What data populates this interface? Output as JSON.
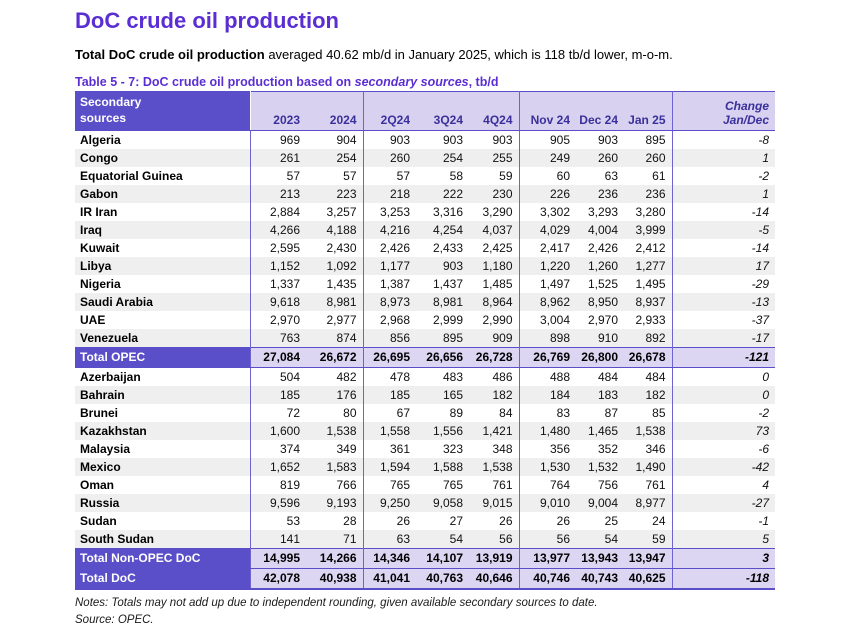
{
  "page": {
    "title": "DoC crude oil production",
    "subtitle_bold": "Total DoC crude oil production",
    "subtitle_rest": " averaged 40.62 mb/d in January 2025, which is 118 tb/d lower, m-o-m.",
    "caption_prefix": "Table 5 - 7: DoC crude oil production based on ",
    "caption_italic": "secondary sources",
    "caption_suffix": ", tb/d",
    "notes": "Notes: Totals may not add up due to independent rounding, given available secondary sources to date.",
    "source": "Source: OPEC."
  },
  "colors": {
    "accent_purple": "#5b2ed3",
    "header_dark_purple": "#5a4fc9",
    "header_light_lavender": "#d8d2f0",
    "header_text_purple": "#3a309b",
    "total_value_bg": "#dcd6f2",
    "alt_row_gray": "#efefef"
  },
  "table": {
    "header": {
      "col0_line1": "Secondary",
      "col0_line2": "sources",
      "columns": [
        "2023",
        "2024",
        "2Q24",
        "3Q24",
        "4Q24",
        "Nov 24",
        "Dec 24",
        "Jan 25"
      ],
      "change_line1": "Change",
      "change_line2": "Jan/Dec"
    },
    "rows": [
      {
        "type": "data",
        "label": "Algeria",
        "values": [
          "969",
          "904",
          "903",
          "903",
          "903",
          "905",
          "903",
          "895"
        ],
        "change": "-8"
      },
      {
        "type": "data",
        "label": "Congo",
        "values": [
          "261",
          "254",
          "260",
          "254",
          "255",
          "249",
          "260",
          "260"
        ],
        "change": "1"
      },
      {
        "type": "data",
        "label": "Equatorial Guinea",
        "values": [
          "57",
          "57",
          "57",
          "58",
          "59",
          "60",
          "63",
          "61"
        ],
        "change": "-2"
      },
      {
        "type": "data",
        "label": "Gabon",
        "values": [
          "213",
          "223",
          "218",
          "222",
          "230",
          "226",
          "236",
          "236"
        ],
        "change": "1"
      },
      {
        "type": "data",
        "label": "IR Iran",
        "values": [
          "2,884",
          "3,257",
          "3,253",
          "3,316",
          "3,290",
          "3,302",
          "3,293",
          "3,280"
        ],
        "change": "-14"
      },
      {
        "type": "data",
        "label": "Iraq",
        "values": [
          "4,266",
          "4,188",
          "4,216",
          "4,254",
          "4,037",
          "4,029",
          "4,004",
          "3,999"
        ],
        "change": "-5"
      },
      {
        "type": "data",
        "label": "Kuwait",
        "values": [
          "2,595",
          "2,430",
          "2,426",
          "2,433",
          "2,425",
          "2,417",
          "2,426",
          "2,412"
        ],
        "change": "-14"
      },
      {
        "type": "data",
        "label": "Libya",
        "values": [
          "1,152",
          "1,092",
          "1,177",
          "903",
          "1,180",
          "1,220",
          "1,260",
          "1,277"
        ],
        "change": "17"
      },
      {
        "type": "data",
        "label": "Nigeria",
        "values": [
          "1,337",
          "1,435",
          "1,387",
          "1,437",
          "1,485",
          "1,497",
          "1,525",
          "1,495"
        ],
        "change": "-29"
      },
      {
        "type": "data",
        "label": "Saudi Arabia",
        "values": [
          "9,618",
          "8,981",
          "8,973",
          "8,981",
          "8,964",
          "8,962",
          "8,950",
          "8,937"
        ],
        "change": "-13"
      },
      {
        "type": "data",
        "label": "UAE",
        "values": [
          "2,970",
          "2,977",
          "2,968",
          "2,999",
          "2,990",
          "3,004",
          "2,970",
          "2,933"
        ],
        "change": "-37"
      },
      {
        "type": "data",
        "label": "Venezuela",
        "values": [
          "763",
          "874",
          "856",
          "895",
          "909",
          "898",
          "910",
          "892"
        ],
        "change": "-17"
      },
      {
        "type": "total",
        "label": "Total  OPEC",
        "values": [
          "27,084",
          "26,672",
          "26,695",
          "26,656",
          "26,728",
          "26,769",
          "26,800",
          "26,678"
        ],
        "change": "-121"
      },
      {
        "type": "data",
        "label": "Azerbaijan",
        "values": [
          "504",
          "482",
          "478",
          "483",
          "486",
          "488",
          "484",
          "484"
        ],
        "change": "0"
      },
      {
        "type": "data",
        "label": "Bahrain",
        "values": [
          "185",
          "176",
          "185",
          "165",
          "182",
          "184",
          "183",
          "182"
        ],
        "change": "0"
      },
      {
        "type": "data",
        "label": "Brunei",
        "values": [
          "72",
          "80",
          "67",
          "89",
          "84",
          "83",
          "87",
          "85"
        ],
        "change": "-2"
      },
      {
        "type": "data",
        "label": "Kazakhstan",
        "values": [
          "1,600",
          "1,538",
          "1,558",
          "1,556",
          "1,421",
          "1,480",
          "1,465",
          "1,538"
        ],
        "change": "73"
      },
      {
        "type": "data",
        "label": "Malaysia",
        "values": [
          "374",
          "349",
          "361",
          "323",
          "348",
          "356",
          "352",
          "346"
        ],
        "change": "-6"
      },
      {
        "type": "data",
        "label": "Mexico",
        "values": [
          "1,652",
          "1,583",
          "1,594",
          "1,588",
          "1,538",
          "1,530",
          "1,532",
          "1,490"
        ],
        "change": "-42"
      },
      {
        "type": "data",
        "label": "Oman",
        "values": [
          "819",
          "766",
          "765",
          "765",
          "761",
          "764",
          "756",
          "761"
        ],
        "change": "4"
      },
      {
        "type": "data",
        "label": "Russia",
        "values": [
          "9,596",
          "9,193",
          "9,250",
          "9,058",
          "9,015",
          "9,010",
          "9,004",
          "8,977"
        ],
        "change": "-27"
      },
      {
        "type": "data",
        "label": "Sudan",
        "values": [
          "53",
          "28",
          "26",
          "27",
          "26",
          "26",
          "25",
          "24"
        ],
        "change": "-1"
      },
      {
        "type": "data",
        "label": "South Sudan",
        "values": [
          "141",
          "71",
          "63",
          "54",
          "56",
          "56",
          "54",
          "59"
        ],
        "change": "5"
      },
      {
        "type": "total",
        "label": "Total Non-OPEC DoC",
        "values": [
          "14,995",
          "14,266",
          "14,346",
          "14,107",
          "13,919",
          "13,977",
          "13,943",
          "13,947"
        ],
        "change": "3"
      },
      {
        "type": "total",
        "label": "Total DoC",
        "values": [
          "42,078",
          "40,938",
          "41,041",
          "40,763",
          "40,646",
          "40,746",
          "40,743",
          "40,625"
        ],
        "change": "-118"
      }
    ]
  }
}
